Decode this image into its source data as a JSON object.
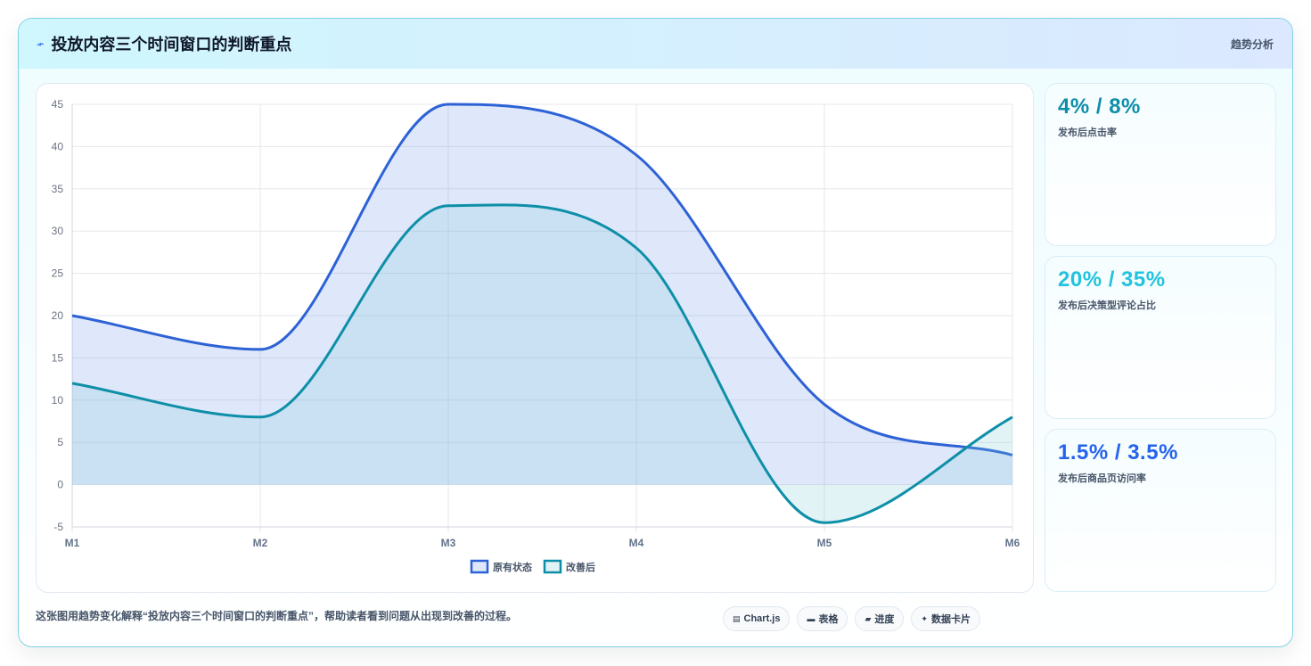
{
  "header": {
    "icon": "chart-trend-icon",
    "title": "投放内容三个时间窗口的判断重点",
    "tag": "趋势分析"
  },
  "stats": [
    {
      "value": "4% / 8%",
      "label": "发布后点击率",
      "color": "#0e8fa8"
    },
    {
      "value": "20% / 35%",
      "label": "发布后决策型评论占比",
      "color": "#22c3de"
    },
    {
      "value": "1.5% / 3.5%",
      "label": "发布后商品页访问率",
      "color": "#2563eb"
    }
  ],
  "footer": {
    "note": "这张图用趋势变化解释“投放内容三个时间窗口的判断重点”，帮助读者看到问题从出现到改善的过程。",
    "chips": [
      {
        "icon": "chart-icon",
        "glyph": "▤",
        "label": "Chart.js"
      },
      {
        "icon": "table-icon",
        "glyph": "▬",
        "label": "表格"
      },
      {
        "icon": "progress-icon",
        "glyph": "▰",
        "label": "进度"
      },
      {
        "icon": "sparkle-icon",
        "glyph": "✦",
        "label": "数据卡片"
      }
    ]
  },
  "chart_data": {
    "type": "area",
    "categories": [
      "M1",
      "M2",
      "M3",
      "M4",
      "M5",
      "M6"
    ],
    "ylim": [
      -5,
      45
    ],
    "yticks": [
      -5,
      0,
      5,
      10,
      15,
      20,
      25,
      30,
      35,
      40,
      45
    ],
    "grid": true,
    "legend_position": "bottom",
    "series": [
      {
        "name": "原有状态",
        "values": [
          20,
          16,
          45,
          39,
          9.5,
          3.5
        ],
        "color": "#2d62d6",
        "fill": "rgba(96,140,232,0.20)"
      },
      {
        "name": "改善后",
        "values": [
          12,
          8,
          33,
          28,
          -4.5,
          8
        ],
        "color": "#0e8fa8",
        "fill": "rgba(125,200,214,0.22)"
      }
    ]
  }
}
